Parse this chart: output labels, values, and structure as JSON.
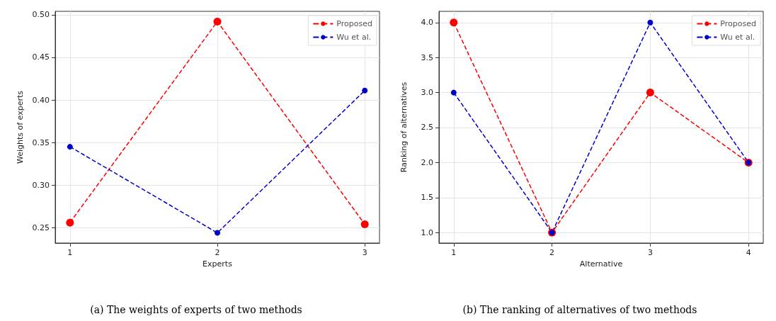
{
  "chart_data": [
    {
      "type": "line",
      "title": "(a) The weights of experts of two methods",
      "xlabel": "Experts",
      "ylabel": "Weights of experts",
      "x": [
        1,
        2,
        3
      ],
      "xlim": [
        0.9,
        3.1
      ],
      "xticks": [
        1,
        2,
        3
      ],
      "ylim": [
        0.232,
        0.504
      ],
      "yticks": [
        0.25,
        {
          "value": 0.3,
          "label": "0.30"
        },
        0.35,
        {
          "value": 0.4,
          "label": "0.40"
        },
        0.45,
        {
          "value": 0.5,
          "label": "0.50"
        }
      ],
      "grid": true,
      "legend": "top right",
      "marker": "circle",
      "line_style": "dashed",
      "series": [
        {
          "name": "Proposed",
          "color": "#ff0000",
          "values": [
            0.256,
            0.492,
            0.254
          ]
        },
        {
          "name": "Wu et al.",
          "color": "#0000cc",
          "values": [
            0.345,
            0.244,
            0.411
          ]
        }
      ]
    },
    {
      "type": "line",
      "title": "(b) The ranking of alternatives of two methods",
      "xlabel": "Alternative",
      "ylabel": "Ranking of alternatives",
      "x": [
        1,
        2,
        3,
        4
      ],
      "xlim": [
        0.85,
        4.15
      ],
      "xticks": [
        1,
        2,
        3,
        4
      ],
      "ylim": [
        0.85,
        4.16
      ],
      "yticks": [
        {
          "value": 1,
          "label": "1.0"
        },
        1.5,
        {
          "value": 2,
          "label": "2.0"
        },
        2.5,
        {
          "value": 3,
          "label": "3.0"
        },
        3.5,
        {
          "value": 4,
          "label": "4.0"
        }
      ],
      "grid": true,
      "legend": "top right",
      "marker": "circle",
      "line_style": "dashed",
      "series": [
        {
          "name": "Proposed",
          "color": "#ff0000",
          "values": [
            4,
            1,
            3,
            2
          ]
        },
        {
          "name": "Wu et al.",
          "color": "#0000cc",
          "values": [
            3,
            1,
            4,
            2
          ]
        }
      ]
    }
  ]
}
